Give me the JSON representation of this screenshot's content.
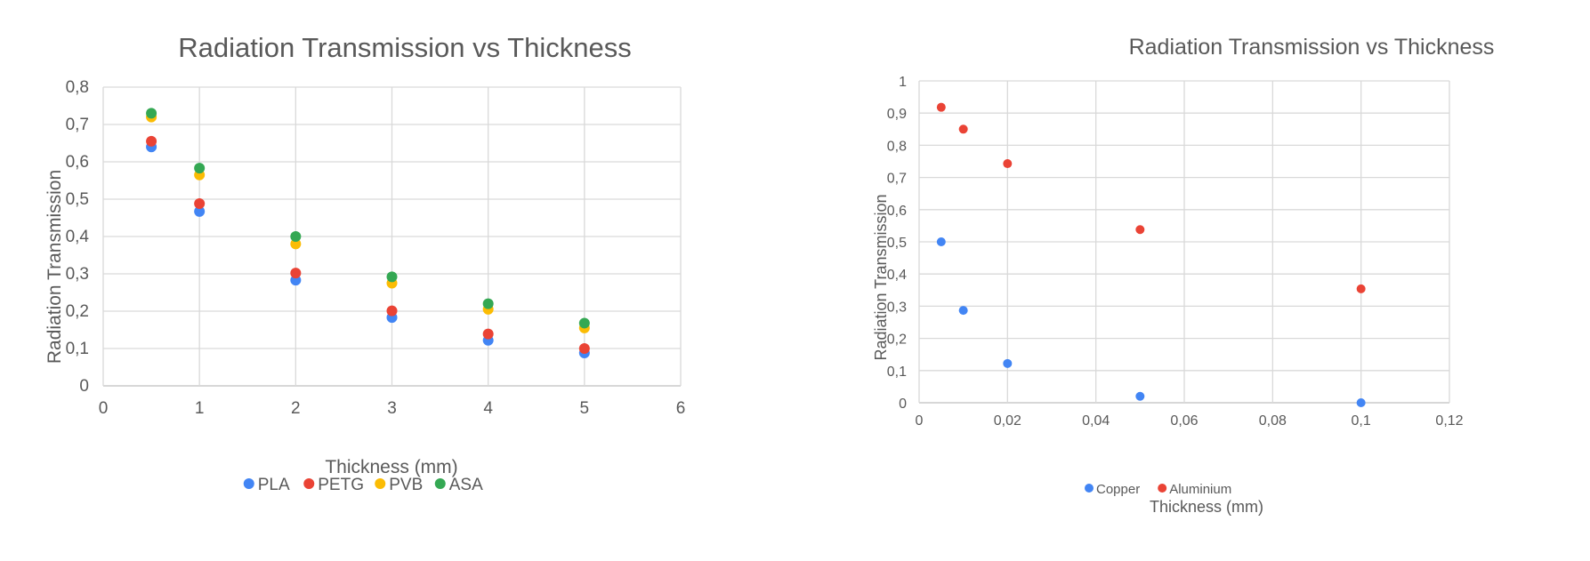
{
  "chart_data": [
    {
      "type": "scatter",
      "title": "Radiation Transmission vs Thickness",
      "xlabel": "Thickness (mm)",
      "ylabel": "Radiation Transmission",
      "xlim": [
        0,
        6
      ],
      "ylim": [
        0,
        0.8
      ],
      "x_ticks": [
        "0",
        "1",
        "2",
        "3",
        "4",
        "5",
        "6"
      ],
      "y_ticks": [
        "0",
        "0,1",
        "0,2",
        "0,3",
        "0,4",
        "0,5",
        "0,6",
        "0,7",
        "0,8"
      ],
      "grid": true,
      "legend_position": "bottom",
      "series": [
        {
          "name": "PLA",
          "color": "#4285F4",
          "x": [
            0.5,
            1,
            2,
            3,
            4,
            5
          ],
          "y": [
            0.64,
            0.467,
            0.283,
            0.183,
            0.122,
            0.088
          ]
        },
        {
          "name": "PETG",
          "color": "#EA4335",
          "x": [
            0.5,
            1,
            2,
            3,
            4,
            5
          ],
          "y": [
            0.655,
            0.488,
            0.302,
            0.201,
            0.139,
            0.1
          ]
        },
        {
          "name": "PVB",
          "color": "#FBBC04",
          "x": [
            0.5,
            1,
            2,
            3,
            4,
            5
          ],
          "y": [
            0.72,
            0.565,
            0.38,
            0.275,
            0.205,
            0.155
          ]
        },
        {
          "name": "ASA",
          "color": "#34A853",
          "x": [
            0.5,
            1,
            2,
            3,
            4,
            5
          ],
          "y": [
            0.73,
            0.583,
            0.4,
            0.292,
            0.22,
            0.168
          ]
        }
      ]
    },
    {
      "type": "scatter",
      "title": "Radiation Transmission vs Thickness",
      "xlabel": "Thickness (mm)",
      "ylabel": "Radiation Transmission",
      "xlim": [
        0,
        0.12
      ],
      "ylim": [
        0,
        1
      ],
      "x_ticks": [
        "0",
        "0,02",
        "0,04",
        "0,06",
        "0,08",
        "0,1",
        "0,12"
      ],
      "y_ticks": [
        "0",
        "0,1",
        "0,2",
        "0,3",
        "0,4",
        "0,5",
        "0,6",
        "0,7",
        "0,8",
        "0,9",
        "1"
      ],
      "grid": true,
      "legend_position": "bottom",
      "series": [
        {
          "name": "Copper",
          "color": "#4285F4",
          "x": [
            0.005,
            0.01,
            0.02,
            0.05,
            0.1
          ],
          "y": [
            0.5,
            0.287,
            0.122,
            0.02,
            0.0
          ]
        },
        {
          "name": "Aluminium",
          "color": "#EA4335",
          "x": [
            0.005,
            0.01,
            0.02,
            0.05,
            0.1
          ],
          "y": [
            0.918,
            0.85,
            0.743,
            0.538,
            0.354
          ]
        }
      ]
    }
  ]
}
